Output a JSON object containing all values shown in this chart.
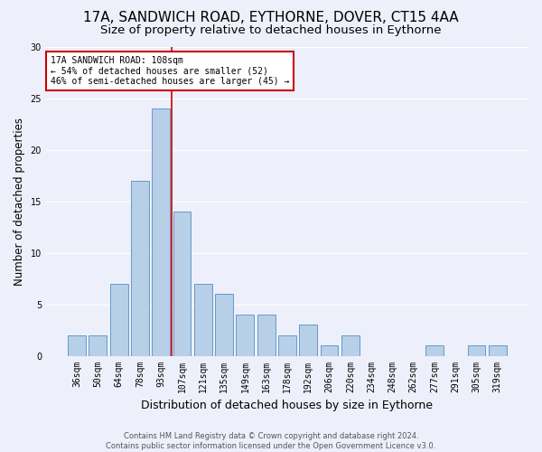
{
  "title1": "17A, SANDWICH ROAD, EYTHORNE, DOVER, CT15 4AA",
  "title2": "Size of property relative to detached houses in Eythorne",
  "xlabel": "Distribution of detached houses by size in Eythorne",
  "ylabel": "Number of detached properties",
  "categories": [
    "36sqm",
    "50sqm",
    "64sqm",
    "78sqm",
    "93sqm",
    "107sqm",
    "121sqm",
    "135sqm",
    "149sqm",
    "163sqm",
    "178sqm",
    "192sqm",
    "206sqm",
    "220sqm",
    "234sqm",
    "248sqm",
    "262sqm",
    "277sqm",
    "291sqm",
    "305sqm",
    "319sqm"
  ],
  "values": [
    2,
    2,
    7,
    17,
    24,
    14,
    7,
    6,
    4,
    4,
    2,
    3,
    1,
    2,
    0,
    0,
    0,
    1,
    0,
    1,
    1
  ],
  "bar_color": "#b8cfe8",
  "bar_edge_color": "#6699cc",
  "vline_color": "#cc0000",
  "vline_x": 4.5,
  "annotation_title": "17A SANDWICH ROAD: 108sqm",
  "annotation_line1": "← 54% of detached houses are smaller (52)",
  "annotation_line2": "46% of semi-detached houses are larger (45) →",
  "annotation_box_color": "white",
  "annotation_box_edge": "#cc0000",
  "footer1": "Contains HM Land Registry data © Crown copyright and database right 2024.",
  "footer2": "Contains public sector information licensed under the Open Government Licence v3.0.",
  "ylim": [
    0,
    30
  ],
  "yticks": [
    0,
    5,
    10,
    15,
    20,
    25,
    30
  ],
  "bg_color": "#edf0fa",
  "grid_color": "#ffffff",
  "title1_fontsize": 11,
  "title2_fontsize": 9.5,
  "xlabel_fontsize": 9,
  "ylabel_fontsize": 8.5,
  "tick_fontsize": 7,
  "annot_fontsize": 7,
  "footer_fontsize": 6
}
